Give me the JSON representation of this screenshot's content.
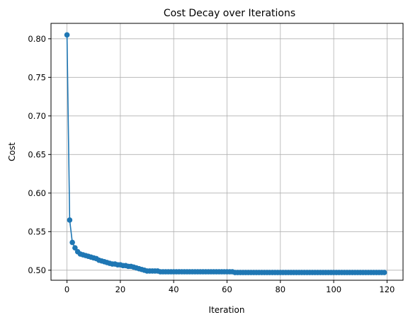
{
  "chart_data": {
    "type": "line",
    "title": "Cost Decay over Iterations",
    "xlabel": "Iteration",
    "ylabel": "Cost",
    "xlim": [
      -6,
      126
    ],
    "ylim": [
      0.487,
      0.82
    ],
    "xticks": [
      0,
      20,
      40,
      60,
      80,
      100,
      120
    ],
    "yticks": [
      0.5,
      0.55,
      0.6,
      0.65,
      0.7,
      0.75,
      0.8
    ],
    "ytick_labels": [
      "0.50",
      "0.55",
      "0.60",
      "0.65",
      "0.70",
      "0.75",
      "0.80"
    ],
    "grid": true,
    "marker": "circle",
    "color": "#1f77b4",
    "series": [
      {
        "x": [
          0,
          1,
          2,
          3,
          4,
          5,
          6,
          7,
          8,
          9,
          10,
          11,
          12,
          13,
          14,
          15,
          16,
          17,
          18,
          19,
          20,
          21,
          22,
          23,
          24,
          25,
          26,
          27,
          28,
          29,
          30,
          31,
          32,
          33,
          34,
          35,
          36,
          37,
          38,
          39,
          40,
          41,
          42,
          43,
          44,
          45,
          46,
          47,
          48,
          49,
          50,
          51,
          52,
          53,
          54,
          55,
          56,
          57,
          58,
          59,
          60,
          61,
          62,
          63,
          64,
          65,
          66,
          67,
          68,
          69,
          70,
          71,
          72,
          73,
          74,
          75,
          76,
          77,
          78,
          79,
          80,
          81,
          82,
          83,
          84,
          85,
          86,
          87,
          88,
          89,
          90,
          91,
          92,
          93,
          94,
          95,
          96,
          97,
          98,
          99,
          100,
          101,
          102,
          103,
          104,
          105,
          106,
          107,
          108,
          109,
          110,
          111,
          112,
          113,
          114,
          115,
          116,
          117,
          118,
          119
        ],
        "values": [
          0.805,
          0.565,
          0.536,
          0.529,
          0.524,
          0.521,
          0.52,
          0.519,
          0.518,
          0.517,
          0.516,
          0.515,
          0.513,
          0.512,
          0.511,
          0.51,
          0.509,
          0.508,
          0.508,
          0.507,
          0.507,
          0.506,
          0.506,
          0.505,
          0.505,
          0.504,
          0.503,
          0.502,
          0.501,
          0.5,
          0.499,
          0.499,
          0.499,
          0.499,
          0.499,
          0.498,
          0.498,
          0.498,
          0.498,
          0.498,
          0.498,
          0.498,
          0.498,
          0.498,
          0.498,
          0.498,
          0.498,
          0.498,
          0.498,
          0.498,
          0.498,
          0.498,
          0.498,
          0.498,
          0.498,
          0.498,
          0.498,
          0.498,
          0.498,
          0.498,
          0.498,
          0.498,
          0.498,
          0.497,
          0.497,
          0.497,
          0.497,
          0.497,
          0.497,
          0.497,
          0.497,
          0.497,
          0.497,
          0.497,
          0.497,
          0.497,
          0.497,
          0.497,
          0.497,
          0.497,
          0.497,
          0.497,
          0.497,
          0.497,
          0.497,
          0.497,
          0.497,
          0.497,
          0.497,
          0.497,
          0.497,
          0.497,
          0.497,
          0.497,
          0.497,
          0.497,
          0.497,
          0.497,
          0.497,
          0.497,
          0.497,
          0.497,
          0.497,
          0.497,
          0.497,
          0.497,
          0.497,
          0.497,
          0.497,
          0.497,
          0.497,
          0.497,
          0.497,
          0.497,
          0.497,
          0.497,
          0.497,
          0.497,
          0.497,
          0.497
        ]
      }
    ]
  }
}
